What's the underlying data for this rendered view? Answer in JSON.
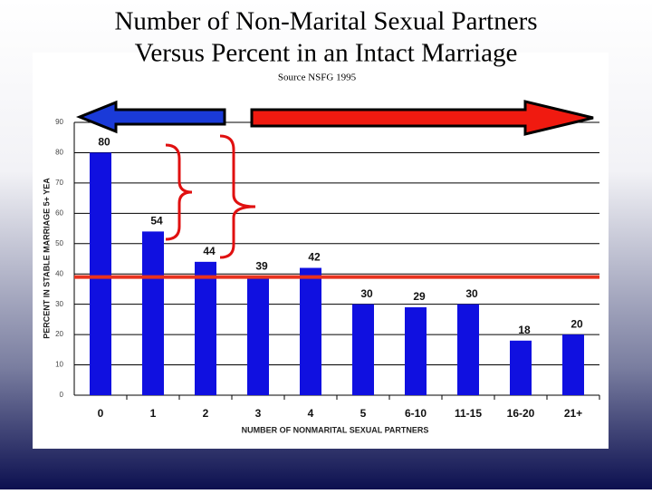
{
  "chart_data": {
    "type": "bar",
    "title": [
      "Number of Non-Marital Sexual Partners",
      "Versus Percent in an Intact Marriage"
    ],
    "source": "Source NSFG 1995",
    "x_label": "NUMBER OF NONMARITAL SEXUAL PARTNERS",
    "y_label": "PERCENT IN STABLE MARRIAGE 5+ YEA",
    "categories": [
      "0",
      "1",
      "2",
      "3",
      "4",
      "5",
      "6-10",
      "11-15",
      "16-20",
      "21+"
    ],
    "values": [
      80,
      54,
      44,
      39,
      42,
      30,
      29,
      30,
      18,
      20
    ],
    "color": "#1010e0",
    "ylim": [
      0,
      90
    ],
    "yticks": [
      0,
      10,
      20,
      30,
      40,
      50,
      60,
      70,
      80,
      90
    ],
    "grid": true,
    "reference_line": {
      "value": 39,
      "color": "#e8321e"
    }
  }
}
